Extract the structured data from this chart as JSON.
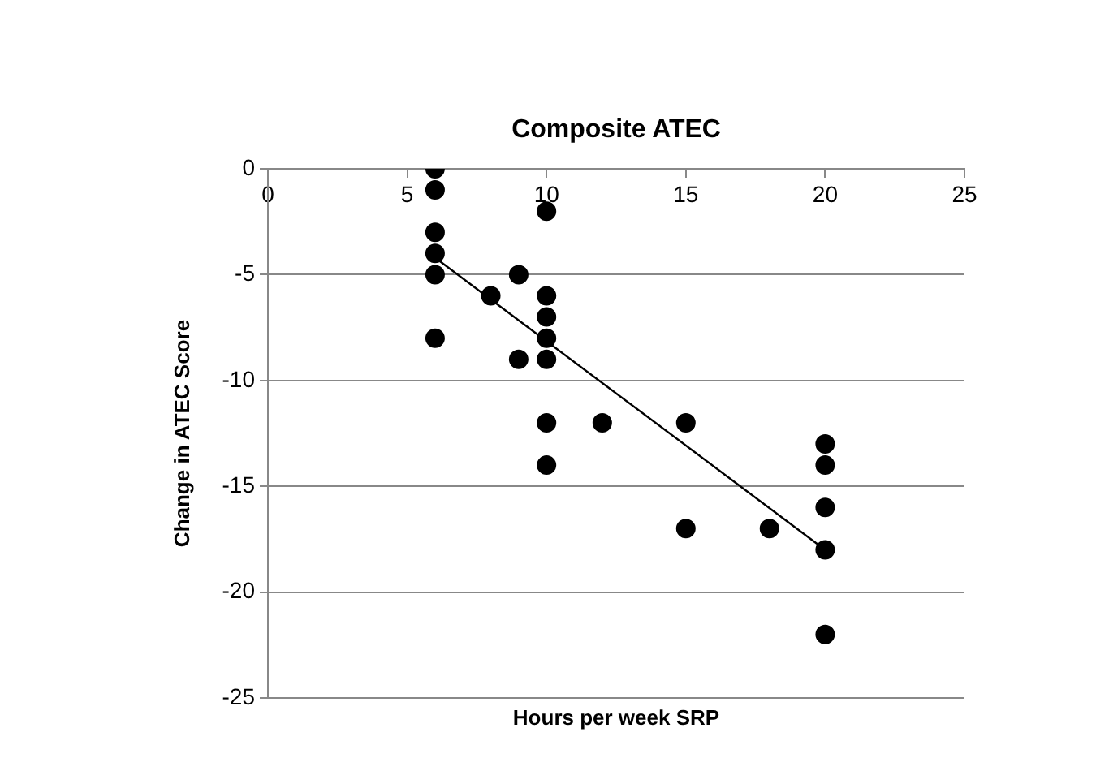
{
  "chart_data": {
    "type": "scatter",
    "title": "Composite ATEC",
    "xlabel": "Hours per week SRP",
    "ylabel": "Change in ATEC Score",
    "xlim": [
      0,
      25
    ],
    "xticks": [
      0,
      5,
      10,
      15,
      20,
      25
    ],
    "ylim": [
      -25,
      0
    ],
    "yticks": [
      0,
      -5,
      -10,
      -15,
      -20,
      -25
    ],
    "grid": "y",
    "legend": false,
    "marker": "circle",
    "series": [
      {
        "color": "#000000",
        "x": [
          6,
          6,
          6,
          6,
          6,
          6,
          8,
          9,
          9,
          10,
          10,
          10,
          10,
          10,
          10,
          10,
          12,
          15,
          15,
          18,
          20,
          20,
          20,
          20,
          20
        ],
        "values": [
          0,
          -1,
          -3,
          -4,
          -5,
          -8,
          -6,
          -5,
          -9,
          -2,
          -6,
          -7,
          -8,
          -9,
          -12,
          -14,
          -12,
          -12,
          -17,
          -17,
          -13,
          -14,
          -16,
          -18,
          -22
        ]
      },
      {
        "type": "line",
        "marker": "none",
        "color": "#000000",
        "x": [
          6,
          20
        ],
        "values": [
          -4.2,
          -18
        ]
      }
    ]
  }
}
